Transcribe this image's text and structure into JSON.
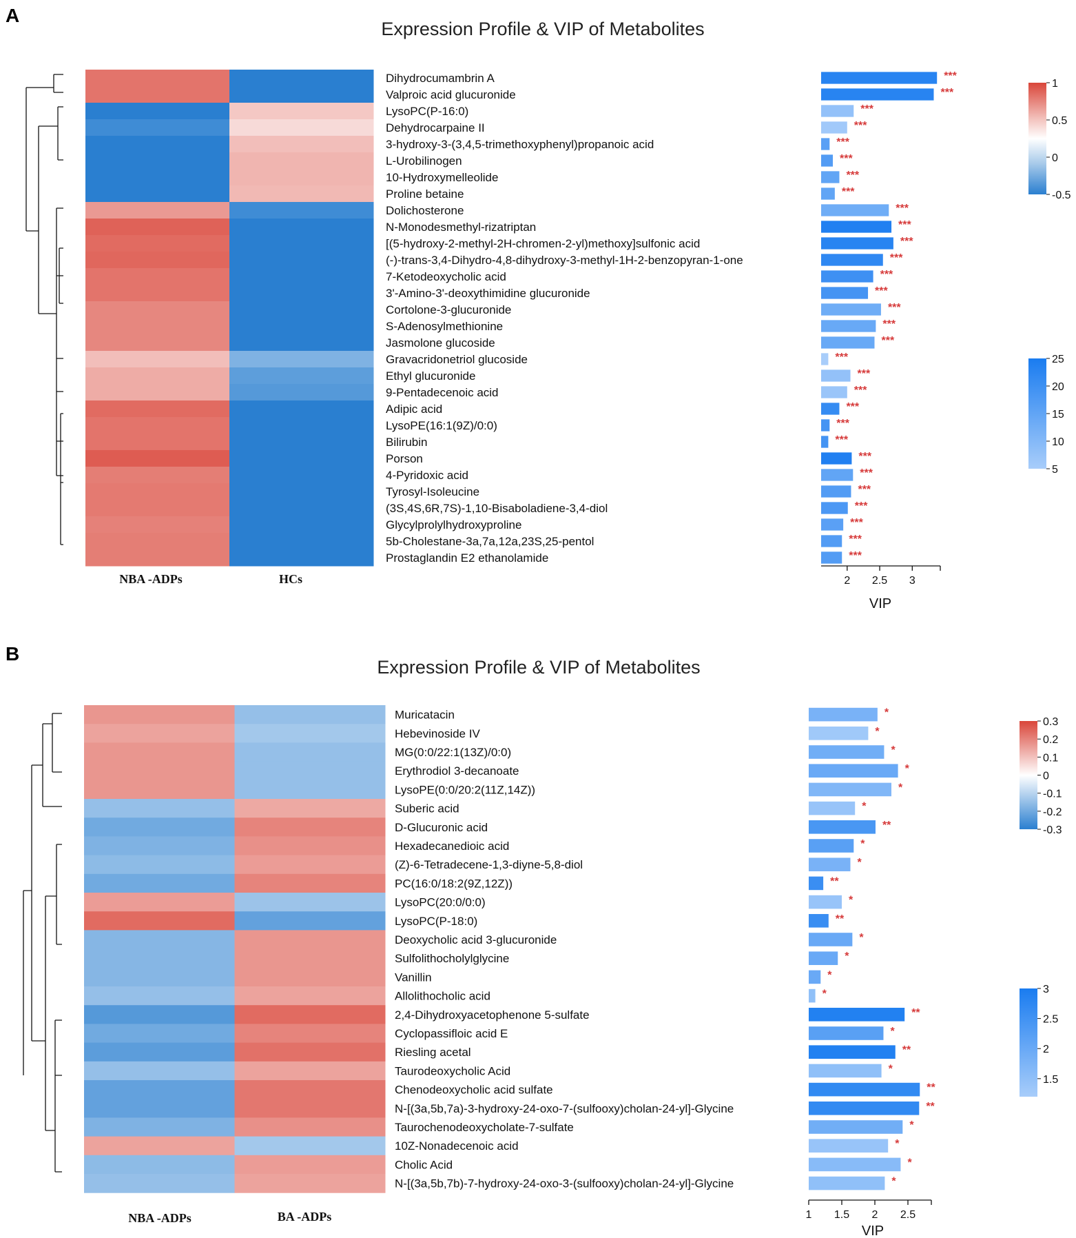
{
  "panels": [
    {
      "label": "A",
      "title": "Expression Profile & VIP of Metabolites",
      "groups": [
        "NBA -ADPs",
        "HCs"
      ],
      "vip_axis_label": "VIP",
      "vip_ticks": [
        2,
        2.5,
        3
      ],
      "vip_range": [
        1.6,
        3.4
      ],
      "heat_scale": {
        "ticks": [
          "1",
          "0.5",
          "0",
          "-0.5"
        ],
        "min": -0.5,
        "max": 1
      },
      "vip_color_scale": {
        "ticks": [
          "25",
          "20",
          "15",
          "10",
          "5"
        ],
        "min": 5,
        "max": 25
      },
      "metabolites": [
        {
          "name": "Dihydrocumambrin A",
          "heat": [
            0.75,
            -0.55
          ],
          "vip": 3.38,
          "color_value": 23,
          "sig": "***"
        },
        {
          "name": "Valproic acid glucuronide",
          "heat": [
            0.75,
            -0.55
          ],
          "vip": 3.33,
          "color_value": 23,
          "sig": "***"
        },
        {
          "name": "LysoPC(P-16:0)",
          "heat": [
            -0.55,
            0.3
          ],
          "vip": 2.1,
          "color_value": 8,
          "sig": "***"
        },
        {
          "name": "Dehydrocarpaine II",
          "heat": [
            -0.45,
            0.2
          ],
          "vip": 2.0,
          "color_value": 6,
          "sig": "***"
        },
        {
          "name": "3-hydroxy-3-(3,4,5-trimethoxyphenyl)propanoic acid",
          "heat": [
            -0.7,
            0.35
          ],
          "vip": 1.73,
          "color_value": 16,
          "sig": "***"
        },
        {
          "name": "L-Urobilinogen",
          "heat": [
            -0.8,
            0.4
          ],
          "vip": 1.78,
          "color_value": 17,
          "sig": "***"
        },
        {
          "name": "10-Hydroxymelleolide",
          "heat": [
            -0.75,
            0.4
          ],
          "vip": 1.88,
          "color_value": 15,
          "sig": "***"
        },
        {
          "name": "Proline betaine",
          "heat": [
            -0.75,
            0.38
          ],
          "vip": 1.81,
          "color_value": 15,
          "sig": "***"
        },
        {
          "name": "Dolichosterone",
          "heat": [
            0.55,
            -0.45
          ],
          "vip": 2.64,
          "color_value": 13,
          "sig": "***"
        },
        {
          "name": "N-Monodesmethyl-rizatriptan",
          "heat": [
            0.85,
            -0.7
          ],
          "vip": 2.68,
          "color_value": 24,
          "sig": "***"
        },
        {
          "name": "[(5-hydroxy-2-methyl-2H-chromen-2-yl)methoxy]sulfonic acid",
          "heat": [
            0.8,
            -0.65
          ],
          "vip": 2.71,
          "color_value": 23,
          "sig": "***"
        },
        {
          "name": "(-)-trans-3,4-Dihydro-4,8-dihydroxy-3-methyl-1H-2-benzopyran-1-one",
          "heat": [
            0.82,
            -0.67
          ],
          "vip": 2.55,
          "color_value": 22,
          "sig": "***"
        },
        {
          "name": "7-Ketodeoxycholic acid",
          "heat": [
            0.75,
            -0.6
          ],
          "vip": 2.4,
          "color_value": 20,
          "sig": "***"
        },
        {
          "name": "3'-Amino-3'-deoxythimidine glucuronide",
          "heat": [
            0.75,
            -0.6
          ],
          "vip": 2.32,
          "color_value": 19,
          "sig": "***"
        },
        {
          "name": "Cortolone-3-glucuronide",
          "heat": [
            0.65,
            -0.5
          ],
          "vip": 2.52,
          "color_value": 13,
          "sig": "***"
        },
        {
          "name": "S-Adenosylmethionine",
          "heat": [
            0.65,
            -0.5
          ],
          "vip": 2.44,
          "color_value": 14,
          "sig": "***"
        },
        {
          "name": "Jasmolone glucoside",
          "heat": [
            0.65,
            -0.5
          ],
          "vip": 2.42,
          "color_value": 14,
          "sig": "***"
        },
        {
          "name": "Gravacridonetriol glucoside",
          "heat": [
            0.35,
            -0.3
          ],
          "vip": 1.71,
          "color_value": 5,
          "sig": "***"
        },
        {
          "name": "Ethyl glucuronide",
          "heat": [
            0.45,
            -0.38
          ],
          "vip": 2.05,
          "color_value": 8,
          "sig": "***"
        },
        {
          "name": "9-Pentadecenoic acid",
          "heat": [
            0.45,
            -0.4
          ],
          "vip": 2.0,
          "color_value": 7,
          "sig": "***"
        },
        {
          "name": "Adipic acid",
          "heat": [
            0.8,
            -0.65
          ],
          "vip": 1.88,
          "color_value": 21,
          "sig": "***"
        },
        {
          "name": "LysoPE(16:1(9Z)/0:0)",
          "heat": [
            0.75,
            -0.6
          ],
          "vip": 1.73,
          "color_value": 19,
          "sig": "***"
        },
        {
          "name": "Bilirubin",
          "heat": [
            0.75,
            -0.6
          ],
          "vip": 1.71,
          "color_value": 19,
          "sig": "***"
        },
        {
          "name": "Porson",
          "heat": [
            0.88,
            -0.72
          ],
          "vip": 2.07,
          "color_value": 24,
          "sig": "***"
        },
        {
          "name": "4-Pyridoxic acid",
          "heat": [
            0.7,
            -0.55
          ],
          "vip": 2.09,
          "color_value": 15,
          "sig": "***"
        },
        {
          "name": "Tyrosyl-Isoleucine",
          "heat": [
            0.72,
            -0.58
          ],
          "vip": 2.06,
          "color_value": 17,
          "sig": "***"
        },
        {
          "name": "(3S,4S,6R,7S)-1,10-Bisaboladiene-3,4-diol",
          "heat": [
            0.72,
            -0.58
          ],
          "vip": 2.01,
          "color_value": 18,
          "sig": "***"
        },
        {
          "name": "Glycylprolylhydroxyproline",
          "heat": [
            0.68,
            -0.52
          ],
          "vip": 1.94,
          "color_value": 16,
          "sig": "***"
        },
        {
          "name": "5b-Cholestane-3a,7a,12a,23S,25-pentol",
          "heat": [
            0.7,
            -0.55
          ],
          "vip": 1.92,
          "color_value": 17,
          "sig": "***"
        },
        {
          "name": "Prostaglandin E2 ethanolamide",
          "heat": [
            0.7,
            -0.55
          ],
          "vip": 1.92,
          "color_value": 17,
          "sig": "***"
        }
      ]
    },
    {
      "label": "B",
      "title": "Expression Profile & VIP of Metabolites",
      "groups": [
        "NBA -ADPs",
        "BA -ADPs"
      ],
      "vip_axis_label": "VIP",
      "vip_ticks": [
        1,
        1.5,
        2,
        2.5
      ],
      "vip_range": [
        1,
        2.85
      ],
      "heat_scale": {
        "ticks": [
          "0.3",
          "0.2",
          "0.1",
          "0",
          "-0.1",
          "-0.2",
          "-0.3"
        ],
        "min": -0.3,
        "max": 0.3
      },
      "vip_color_scale": {
        "ticks": [
          "3",
          "2.5",
          "2",
          "1.5"
        ],
        "min": 1.2,
        "max": 3
      },
      "metabolites": [
        {
          "name": "Muricatacin",
          "heat": [
            0.17,
            -0.15
          ],
          "vip": 2.04,
          "color_value": 1.8,
          "sig": "*"
        },
        {
          "name": "Hebevinoside IV",
          "heat": [
            0.15,
            -0.13
          ],
          "vip": 1.9,
          "color_value": 1.3,
          "sig": "*"
        },
        {
          "name": "MG(0:0/22:1(13Z)/0:0)",
          "heat": [
            0.17,
            -0.15
          ],
          "vip": 2.14,
          "color_value": 1.9,
          "sig": "*"
        },
        {
          "name": "Erythrodiol 3-decanoate",
          "heat": [
            0.17,
            -0.15
          ],
          "vip": 2.35,
          "color_value": 2.0,
          "sig": "*"
        },
        {
          "name": "LysoPE(0:0/20:2(11Z,14Z))",
          "heat": [
            0.17,
            -0.15
          ],
          "vip": 2.25,
          "color_value": 1.7,
          "sig": "*"
        },
        {
          "name": "Suberic acid",
          "heat": [
            -0.15,
            0.14
          ],
          "vip": 1.7,
          "color_value": 1.4,
          "sig": "*"
        },
        {
          "name": "D-Glucuronic acid",
          "heat": [
            -0.2,
            0.2
          ],
          "vip": 2.01,
          "color_value": 2.4,
          "sig": "**"
        },
        {
          "name": "Hexadecanedioic acid",
          "heat": [
            -0.18,
            0.18
          ],
          "vip": 1.68,
          "color_value": 2.2,
          "sig": "*"
        },
        {
          "name": "(Z)-6-Tetradecene-1,3-diyne-5,8-diol",
          "heat": [
            -0.16,
            0.16
          ],
          "vip": 1.63,
          "color_value": 1.8,
          "sig": "*"
        },
        {
          "name": "PC(16:0/18:2(9Z,12Z))",
          "heat": [
            -0.2,
            0.2
          ],
          "vip": 1.22,
          "color_value": 2.6,
          "sig": "**"
        },
        {
          "name": "LysoPC(20:0/0:0)",
          "heat": [
            0.16,
            -0.14
          ],
          "vip": 1.5,
          "color_value": 1.4,
          "sig": "*"
        },
        {
          "name": "LysoPC(P-18:0)",
          "heat": [
            0.24,
            -0.22
          ],
          "vip": 1.3,
          "color_value": 2.6,
          "sig": "**"
        },
        {
          "name": "Deoxycholic acid 3-glucuronide",
          "heat": [
            -0.17,
            0.17
          ],
          "vip": 1.66,
          "color_value": 2.0,
          "sig": "*"
        },
        {
          "name": "Sulfolithocholylglycine",
          "heat": [
            -0.17,
            0.17
          ],
          "vip": 1.44,
          "color_value": 2.0,
          "sig": "*"
        },
        {
          "name": "Vanillin",
          "heat": [
            -0.17,
            0.17
          ],
          "vip": 1.18,
          "color_value": 2.0,
          "sig": "*"
        },
        {
          "name": "Allolithocholic acid",
          "heat": [
            -0.15,
            0.15
          ],
          "vip": 1.1,
          "color_value": 1.5,
          "sig": "*"
        },
        {
          "name": "2,4-Dihydroxyacetophenone 5-sulfate",
          "heat": [
            -0.24,
            0.24
          ],
          "vip": 2.45,
          "color_value": 2.9,
          "sig": "**"
        },
        {
          "name": "Cyclopassifloic acid E",
          "heat": [
            -0.2,
            0.2
          ],
          "vip": 2.13,
          "color_value": 2.2,
          "sig": "*"
        },
        {
          "name": "Riesling acetal",
          "heat": [
            -0.23,
            0.23
          ],
          "vip": 2.31,
          "color_value": 2.9,
          "sig": "**"
        },
        {
          "name": "Taurodeoxycholic Acid",
          "heat": [
            -0.15,
            0.15
          ],
          "vip": 2.1,
          "color_value": 1.5,
          "sig": "*"
        },
        {
          "name": "Chenodeoxycholic acid sulfate",
          "heat": [
            -0.22,
            0.22
          ],
          "vip": 2.68,
          "color_value": 2.7,
          "sig": "**"
        },
        {
          "name": "N-[(3a,5b,7a)-3-hydroxy-24-oxo-7-(sulfooxy)cholan-24-yl]-Glycine",
          "heat": [
            -0.22,
            0.22
          ],
          "vip": 2.67,
          "color_value": 2.7,
          "sig": "**"
        },
        {
          "name": "Taurochenodeoxycholate-7-sulfate",
          "heat": [
            -0.18,
            0.18
          ],
          "vip": 2.42,
          "color_value": 1.9,
          "sig": "*"
        },
        {
          "name": "10Z-Nonadecenoic acid",
          "heat": [
            0.15,
            -0.13
          ],
          "vip": 2.2,
          "color_value": 1.4,
          "sig": "*"
        },
        {
          "name": "Cholic Acid",
          "heat": [
            -0.16,
            0.16
          ],
          "vip": 2.39,
          "color_value": 1.6,
          "sig": "*"
        },
        {
          "name": "N-[(3a,5b,7b)-7-hydroxy-24-oxo-3-(sulfooxy)cholan-24-yl]-Glycine",
          "heat": [
            -0.15,
            0.15
          ],
          "vip": 2.15,
          "color_value": 1.5,
          "sig": "*"
        }
      ]
    }
  ],
  "chart_data": [
    {
      "type": "heatmap",
      "title": "Expression Profile & VIP of Metabolites",
      "panel": "A",
      "columns": [
        "NBA -ADPs",
        "HCs"
      ],
      "colorbar_ticks": [
        "1",
        "0.5",
        "0",
        "-0.5"
      ]
    },
    {
      "type": "bar",
      "panel": "A",
      "xlabel": "VIP",
      "xticks": [
        2,
        2.5,
        3
      ]
    },
    {
      "type": "heatmap",
      "title": "Expression Profile & VIP of Metabolites",
      "panel": "B",
      "columns": [
        "NBA -ADPs",
        "BA -ADPs"
      ],
      "colorbar_ticks": [
        "0.3",
        "0.2",
        "0.1",
        "0",
        "-0.1",
        "-0.2",
        "-0.3"
      ]
    },
    {
      "type": "bar",
      "panel": "B",
      "xlabel": "VIP",
      "xticks": [
        1,
        1.5,
        2,
        2.5
      ]
    }
  ]
}
